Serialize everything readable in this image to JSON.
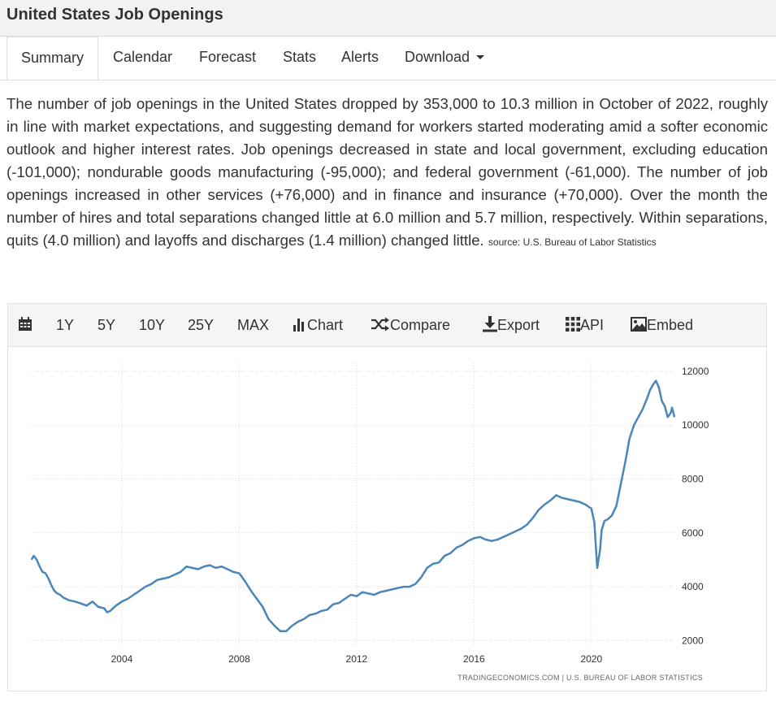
{
  "page": {
    "title": "United States Job Openings"
  },
  "tabs": [
    {
      "label": "Summary",
      "active": true
    },
    {
      "label": "Calendar"
    },
    {
      "label": "Forecast"
    },
    {
      "label": "Stats"
    },
    {
      "label": "Alerts"
    },
    {
      "label": "Download"
    }
  ],
  "description": {
    "text": "The number of job openings in the United States dropped by 353,000 to 10.3 million in October of 2022, roughly in line with market expectations, and suggesting demand for workers started moderating amid a softer economic outlook and higher interest rates. Job openings decreased in state and local government, excluding education (-101,000); nondurable goods manufacturing (-95,000); and federal government (-61,000). The number of job openings increased in other services (+76,000) and in finance and insurance (+70,000). Over the month the number of hires and total separations changed little at 6.0 million and 5.7 million, respectively. Within separations, quits (4.0 million) and layoffs and discharges (1.4 million) changed little.",
    "source": "source: U.S. Bureau of Labor Statistics"
  },
  "toolbar": {
    "calendar_icon": "calendar-icon",
    "ranges": [
      "1Y",
      "5Y",
      "10Y",
      "25Y",
      "MAX"
    ],
    "chart_label": "Chart",
    "compare_label": "Compare",
    "export_label": "Export",
    "api_label": "API",
    "embed_label": "Embed"
  },
  "chart_credit": "TRADINGECONOMICS.COM  |  U.S. BUREAU OF LABOR STATISTICS",
  "colors": {
    "line": "#4a86b9",
    "grid": "#d8d8d8",
    "text": "#333333"
  },
  "chart_data": {
    "type": "line",
    "title": "",
    "xlabel": "",
    "ylabel": "",
    "xlim": [
      2000.9,
      2022.83
    ],
    "ylim": [
      1800,
      12300
    ],
    "x_ticks": [
      2004,
      2008,
      2012,
      2016,
      2020
    ],
    "x_tick_labels": [
      "2004",
      "2008",
      "2012",
      "2016",
      "2020"
    ],
    "y_ticks": [
      2000,
      4000,
      6000,
      8000,
      10000,
      12000
    ],
    "y_tick_labels": [
      "2000",
      "4000",
      "6000",
      "8000",
      "10000",
      "12000"
    ],
    "grid": true,
    "legend": "none",
    "series": [
      {
        "name": "",
        "x": [
          2000.92,
          2001.0,
          2001.1,
          2001.2,
          2001.3,
          2001.4,
          2001.5,
          2001.6,
          2001.7,
          2001.8,
          2001.9,
          2002.0,
          2002.2,
          2002.4,
          2002.6,
          2002.8,
          2003.0,
          2003.2,
          2003.4,
          2003.5,
          2003.6,
          2003.8,
          2004.0,
          2004.2,
          2004.4,
          2004.6,
          2004.8,
          2005.0,
          2005.2,
          2005.4,
          2005.6,
          2005.8,
          2006.0,
          2006.1,
          2006.2,
          2006.4,
          2006.6,
          2006.8,
          2007.0,
          2007.2,
          2007.4,
          2007.6,
          2007.8,
          2008.0,
          2008.2,
          2008.4,
          2008.6,
          2008.8,
          2009.0,
          2009.2,
          2009.4,
          2009.6,
          2009.8,
          2010.0,
          2010.2,
          2010.4,
          2010.6,
          2010.8,
          2011.0,
          2011.2,
          2011.4,
          2011.6,
          2011.8,
          2012.0,
          2012.2,
          2012.4,
          2012.6,
          2012.8,
          2013.0,
          2013.2,
          2013.4,
          2013.6,
          2013.8,
          2014.0,
          2014.2,
          2014.4,
          2014.6,
          2014.8,
          2015.0,
          2015.2,
          2015.4,
          2015.6,
          2015.8,
          2016.0,
          2016.2,
          2016.4,
          2016.6,
          2016.8,
          2017.0,
          2017.2,
          2017.4,
          2017.6,
          2017.8,
          2018.0,
          2018.2,
          2018.4,
          2018.6,
          2018.8,
          2019.0,
          2019.2,
          2019.4,
          2019.6,
          2019.8,
          2020.0,
          2020.1,
          2020.2,
          2020.3,
          2020.35,
          2020.45,
          2020.55,
          2020.7,
          2020.85,
          2021.0,
          2021.15,
          2021.3,
          2021.45,
          2021.6,
          2021.75,
          2021.9,
          2022.0,
          2022.1,
          2022.2,
          2022.3,
          2022.4,
          2022.5,
          2022.6,
          2022.7,
          2022.75,
          2022.83
        ],
        "values": [
          5000,
          5150,
          5000,
          4750,
          4550,
          4500,
          4300,
          4050,
          3850,
          3750,
          3700,
          3600,
          3500,
          3450,
          3380,
          3300,
          3450,
          3250,
          3200,
          3050,
          3100,
          3300,
          3450,
          3550,
          3700,
          3850,
          4000,
          4100,
          4250,
          4300,
          4350,
          4450,
          4550,
          4650,
          4750,
          4700,
          4650,
          4750,
          4800,
          4700,
          4750,
          4650,
          4550,
          4500,
          4200,
          3850,
          3550,
          3250,
          2800,
          2550,
          2350,
          2350,
          2550,
          2700,
          2800,
          2950,
          3000,
          3100,
          3150,
          3350,
          3400,
          3550,
          3700,
          3650,
          3800,
          3750,
          3700,
          3800,
          3850,
          3900,
          3950,
          4000,
          4000,
          4100,
          4350,
          4700,
          4850,
          4900,
          5150,
          5250,
          5450,
          5550,
          5700,
          5800,
          5850,
          5750,
          5700,
          5750,
          5850,
          5950,
          6050,
          6150,
          6300,
          6550,
          6850,
          7050,
          7200,
          7400,
          7300,
          7250,
          7200,
          7150,
          7050,
          6900,
          6400,
          4700,
          5400,
          6100,
          6450,
          6500,
          6650,
          7000,
          7800,
          8600,
          9500,
          10000,
          10300,
          10600,
          11000,
          11300,
          11500,
          11650,
          11400,
          10900,
          10700,
          10300,
          10450,
          10650,
          10300
        ]
      }
    ]
  }
}
